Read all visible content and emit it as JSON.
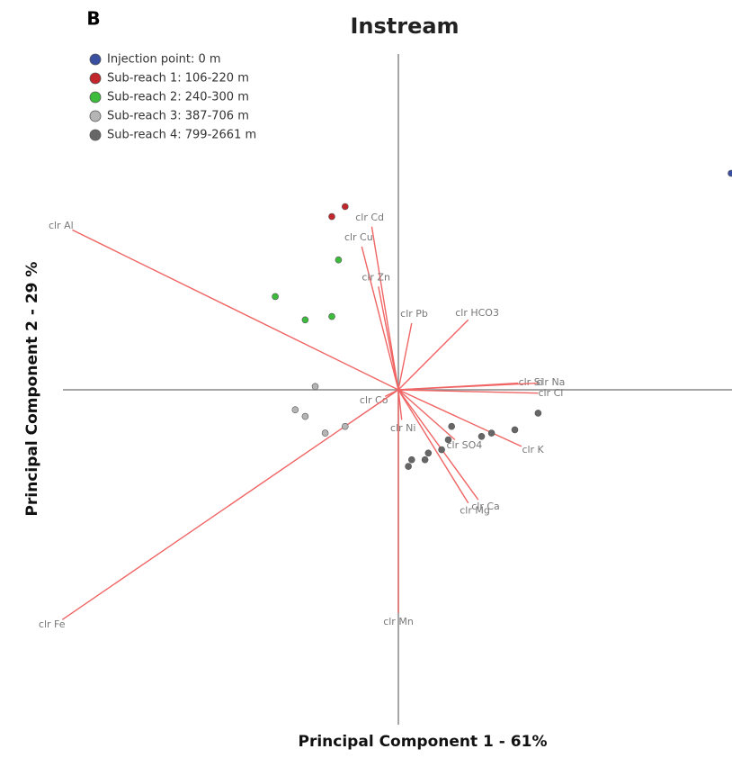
{
  "chart_data": {
    "type": "biplot",
    "panel_label": "B",
    "title": "Instream",
    "x_label": "Principal Component 1 - 61%",
    "y_label": "Principal Component 2 - 29 %",
    "xlim": [
      -1,
      1
    ],
    "ylim": [
      -1,
      1
    ],
    "legend": "upper left",
    "series": [
      {
        "name": "Injection point: 0 m",
        "color": "#3a4fa0",
        "x": [
          1.0
        ],
        "y": [
          0.65
        ]
      },
      {
        "name": "Sub-reach 1: 106-220 m",
        "color": "#c0262b",
        "x": [
          -0.2,
          -0.16
        ],
        "y": [
          0.52,
          0.55
        ]
      },
      {
        "name": "Sub-reach 2: 240-300 m",
        "color": "#3dbb3d",
        "x": [
          -0.18,
          -0.37,
          -0.28,
          -0.2
        ],
        "y": [
          0.39,
          0.28,
          0.21,
          0.22
        ]
      },
      {
        "name": "Sub-reach 3: 387-706 m",
        "color": "#b5b5b5",
        "x": [
          -0.25,
          -0.31,
          -0.28,
          -0.22,
          -0.16
        ],
        "y": [
          0.01,
          -0.06,
          -0.08,
          -0.13,
          -0.11
        ]
      },
      {
        "name": "Sub-reach 4: 799-2661 m",
        "color": "#666666",
        "x": [
          0.42,
          0.35,
          0.28,
          0.25,
          0.16,
          0.15,
          0.13,
          0.09,
          0.08,
          0.04,
          0.03
        ],
        "y": [
          -0.07,
          -0.12,
          -0.13,
          -0.14,
          -0.11,
          -0.15,
          -0.18,
          -0.19,
          -0.21,
          -0.21,
          -0.23
        ]
      }
    ],
    "loadings": {
      "color": "#f06464",
      "labels": [
        "clr Al",
        "clr Cd",
        "clr Cu",
        "clr Zn",
        "clr Pb",
        "clr HCO3",
        "clr Si",
        "clr Na",
        "clr Cl",
        "clr Co",
        "clr Ni",
        "clr SO4",
        "clr K",
        "clr Ca",
        "clr Mg",
        "clr Mn",
        "clr Fe"
      ],
      "x": [
        -0.98,
        -0.08,
        -0.11,
        -0.06,
        0.04,
        0.21,
        0.36,
        0.42,
        0.42,
        -0.04,
        0.01,
        0.17,
        0.37,
        0.24,
        0.21,
        0.0,
        -1.01
      ],
      "y": [
        0.48,
        0.49,
        0.43,
        0.31,
        0.2,
        0.21,
        0.02,
        0.02,
        -0.01,
        -0.02,
        -0.09,
        -0.15,
        -0.17,
        -0.33,
        -0.34,
        -0.67,
        -0.69
      ]
    }
  }
}
